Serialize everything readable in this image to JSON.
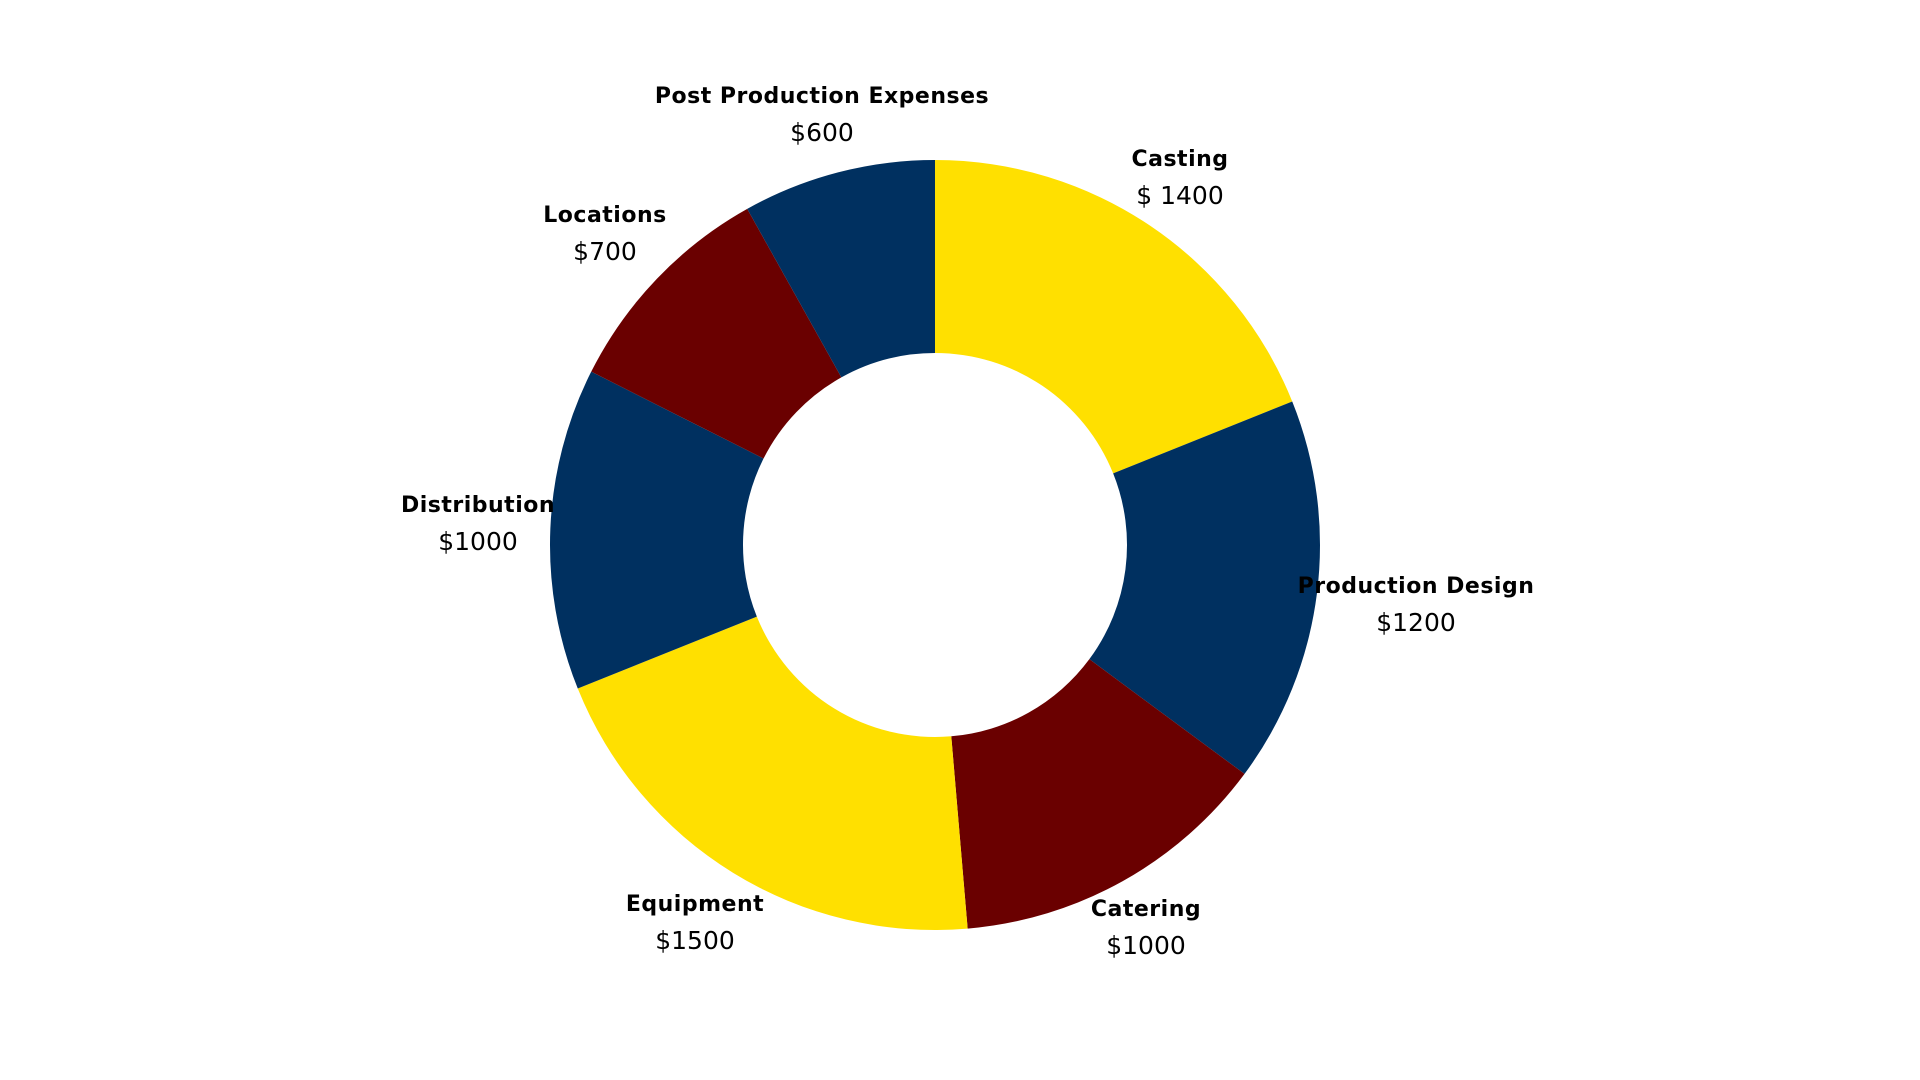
{
  "chart_data": {
    "type": "pie",
    "hole": true,
    "categories": [
      "Casting",
      "Production Design",
      "Catering",
      "Equipment",
      "Distribution",
      "Locations",
      "Post Production Expenses"
    ],
    "values": [
      1400,
      1200,
      1000,
      1500,
      1000,
      700,
      600
    ],
    "value_labels": [
      "$ 1400",
      "$1200",
      "$1000",
      "$1500",
      "$1000",
      "$700",
      "$600"
    ],
    "colors": [
      "#FFE000",
      "#003060",
      "#6A0000",
      "#FFE000",
      "#003060",
      "#6A0000",
      "#003060"
    ]
  }
}
